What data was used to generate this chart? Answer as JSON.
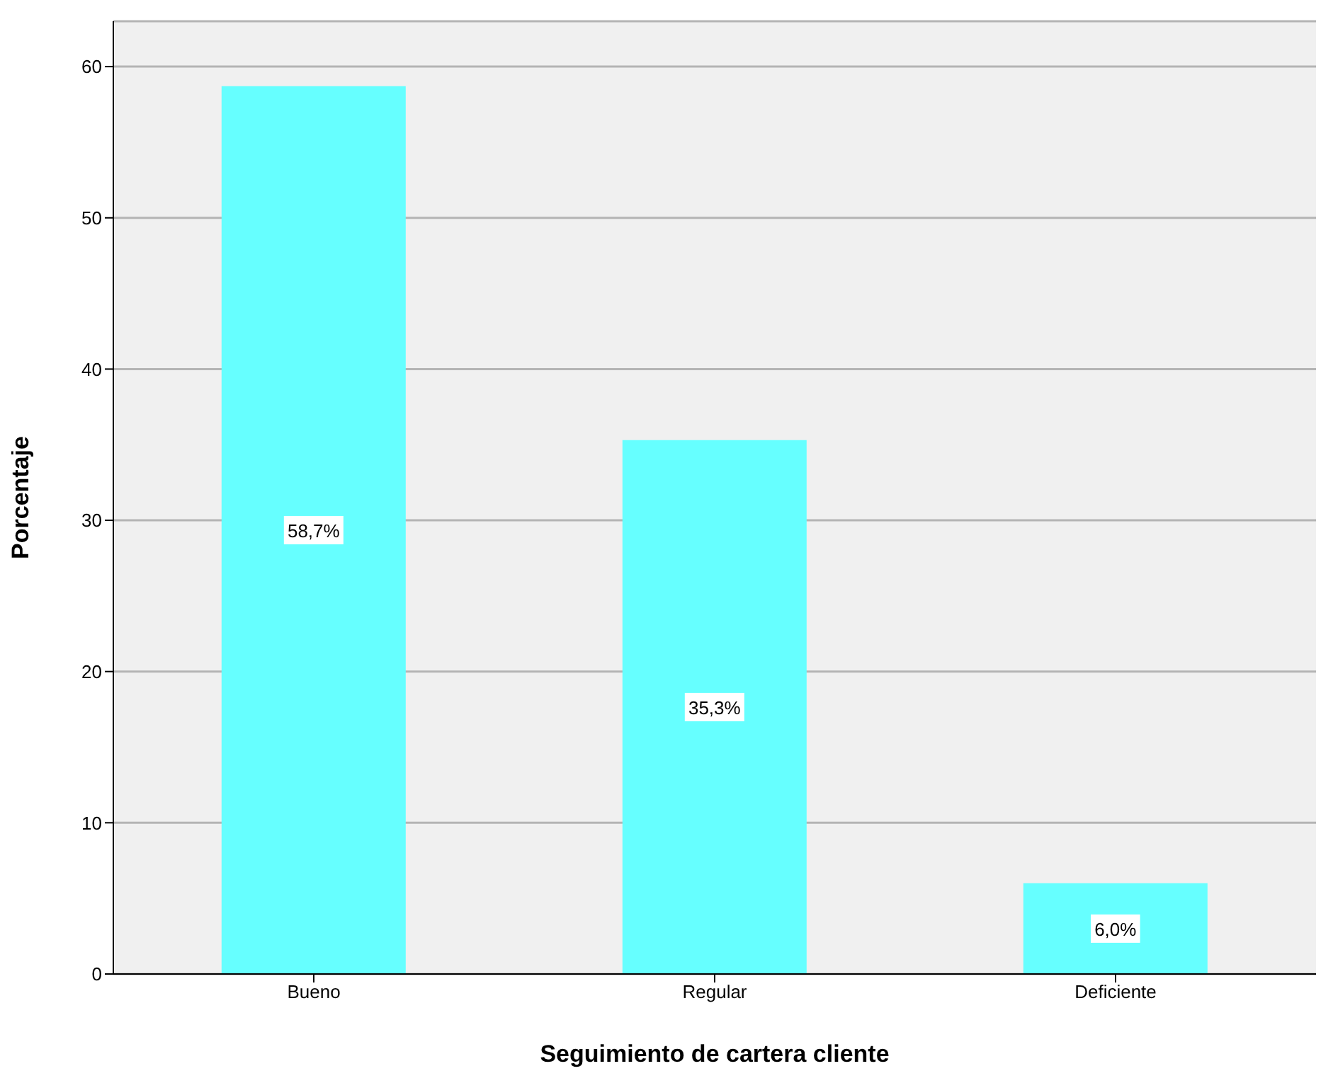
{
  "chart_data": {
    "type": "bar",
    "xlabel": "Seguimiento de cartera cliente",
    "ylabel": "Porcentaje",
    "categories": [
      "Bueno",
      "Regular",
      "Deficiente"
    ],
    "values": [
      58.7,
      35.3,
      6.0
    ],
    "value_labels": [
      "58,7%",
      "35,3%",
      "6,0%"
    ],
    "color": "#66ffff",
    "ylim": [
      0,
      63
    ],
    "yticks": [
      0,
      10,
      20,
      30,
      40,
      50,
      60
    ],
    "grid": "y"
  }
}
